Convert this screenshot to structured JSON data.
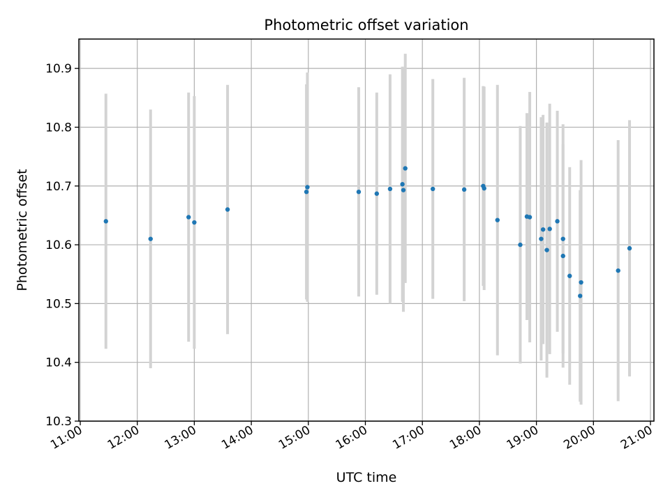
{
  "chart_data": {
    "type": "scatter",
    "title": "Photometric offset variation",
    "xlabel": "UTC time",
    "ylabel": "Photometric offset",
    "xlim": [
      "11:00",
      "21:00"
    ],
    "ylim": [
      10.3,
      10.95
    ],
    "grid": true,
    "x_ticks": [
      "11:00",
      "12:00",
      "13:00",
      "14:00",
      "15:00",
      "16:00",
      "17:00",
      "18:00",
      "19:00",
      "20:00",
      "21:00"
    ],
    "y_ticks": [
      "10.3",
      "10.4",
      "10.5",
      "10.6",
      "10.7",
      "10.8",
      "10.9"
    ],
    "colors": {
      "point": "#1f77b4",
      "errorbar": "#d3d3d3"
    },
    "series": [
      {
        "points": [
          {
            "x": "11:27",
            "y": 10.64,
            "yerr": 0.217
          },
          {
            "x": "12:14",
            "y": 10.61,
            "yerr": 0.22
          },
          {
            "x": "12:54",
            "y": 10.647,
            "yerr": 0.212
          },
          {
            "x": "13:00",
            "y": 10.638,
            "yerr": 0.215
          },
          {
            "x": "13:35",
            "y": 10.66,
            "yerr": 0.212
          },
          {
            "x": "14:58",
            "y": 10.69,
            "yerr": 0.183
          },
          {
            "x": "14:59",
            "y": 10.698,
            "yerr": 0.195
          },
          {
            "x": "15:53",
            "y": 10.69,
            "yerr": 0.178
          },
          {
            "x": "16:12",
            "y": 10.687,
            "yerr": 0.172
          },
          {
            "x": "16:26",
            "y": 10.695,
            "yerr": 0.195
          },
          {
            "x": "16:39",
            "y": 10.703,
            "yerr": 0.2
          },
          {
            "x": "16:40",
            "y": 10.693,
            "yerr": 0.207
          },
          {
            "x": "16:42",
            "y": 10.73,
            "yerr": 0.195
          },
          {
            "x": "17:11",
            "y": 10.695,
            "yerr": 0.187
          },
          {
            "x": "17:44",
            "y": 10.694,
            "yerr": 0.19
          },
          {
            "x": "18:04",
            "y": 10.7,
            "yerr": 0.17
          },
          {
            "x": "18:05",
            "y": 10.696,
            "yerr": 0.173
          },
          {
            "x": "18:19",
            "y": 10.642,
            "yerr": 0.23
          },
          {
            "x": "18:43",
            "y": 10.6,
            "yerr": 0.202
          },
          {
            "x": "18:50",
            "y": 10.648,
            "yerr": 0.176
          },
          {
            "x": "18:53",
            "y": 10.647,
            "yerr": 0.213
          },
          {
            "x": "19:05",
            "y": 10.61,
            "yerr": 0.207
          },
          {
            "x": "19:07",
            "y": 10.626,
            "yerr": 0.195
          },
          {
            "x": "19:11",
            "y": 10.591,
            "yerr": 0.217
          },
          {
            "x": "19:14",
            "y": 10.627,
            "yerr": 0.213
          },
          {
            "x": "19:22",
            "y": 10.64,
            "yerr": 0.188
          },
          {
            "x": "19:28",
            "y": 10.61,
            "yerr": 0.195
          },
          {
            "x": "19:28",
            "y": 10.581,
            "yerr": 0.19
          },
          {
            "x": "19:35",
            "y": 10.547,
            "yerr": 0.185
          },
          {
            "x": "19:46",
            "y": 10.513,
            "yerr": 0.18
          },
          {
            "x": "19:47",
            "y": 10.536,
            "yerr": 0.208
          },
          {
            "x": "20:26",
            "y": 10.556,
            "yerr": 0.222
          },
          {
            "x": "20:38",
            "y": 10.594,
            "yerr": 0.218
          }
        ]
      }
    ]
  }
}
